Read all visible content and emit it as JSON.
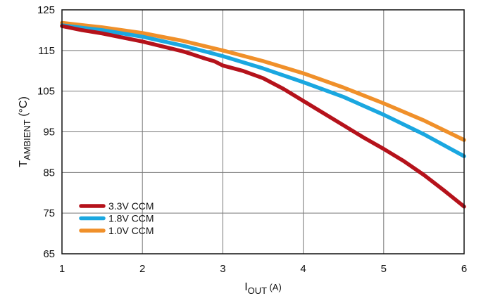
{
  "chart_data": {
    "type": "line",
    "ylabel": {
      "main": "T",
      "sub": "AMBIENT",
      "unit": " (°C)"
    },
    "xlabel": {
      "main": "I",
      "sub": "OUT",
      "unit": " (A)"
    },
    "xlim": [
      1,
      6
    ],
    "ylim": [
      65,
      125
    ],
    "x_ticks": [
      "1",
      "2",
      "3",
      "4",
      "5",
      "6"
    ],
    "y_ticks": [
      "65",
      "75",
      "85",
      "95",
      "105",
      "115",
      "125"
    ],
    "grid": true,
    "legend_position": "bottom-left",
    "series": [
      {
        "name": "3.3V CCM",
        "color": "#b5121b",
        "x": [
          1.0,
          1.25,
          1.5,
          1.75,
          2.0,
          2.25,
          2.5,
          2.6,
          2.75,
          2.9,
          3.0,
          3.25,
          3.5,
          3.75,
          4.0,
          4.25,
          4.5,
          4.75,
          5.0,
          5.25,
          5.5,
          5.75,
          6.0
        ],
        "y": [
          121.0,
          120.0,
          119.2,
          118.2,
          117.2,
          116.0,
          114.8,
          114.2,
          113.2,
          112.3,
          111.3,
          110.0,
          108.2,
          105.6,
          102.6,
          99.6,
          96.6,
          93.6,
          90.8,
          87.8,
          84.4,
          80.6,
          76.6
        ]
      },
      {
        "name": "1.8V CCM",
        "color": "#1aa7e0",
        "x": [
          1.0,
          1.5,
          2.0,
          2.5,
          3.0,
          3.5,
          4.0,
          4.5,
          5.0,
          5.5,
          6.0
        ],
        "y": [
          121.2,
          120.0,
          118.4,
          116.2,
          113.6,
          110.6,
          107.2,
          103.6,
          99.2,
          94.4,
          89.0
        ]
      },
      {
        "name": "1.0V CCM",
        "color": "#f0902a",
        "x": [
          1.0,
          1.5,
          2.0,
          2.5,
          3.0,
          3.5,
          4.0,
          4.5,
          5.0,
          5.5,
          6.0
        ],
        "y": [
          121.8,
          120.7,
          119.3,
          117.4,
          115.0,
          112.4,
          109.4,
          105.9,
          102.0,
          97.8,
          93.0
        ]
      }
    ]
  }
}
